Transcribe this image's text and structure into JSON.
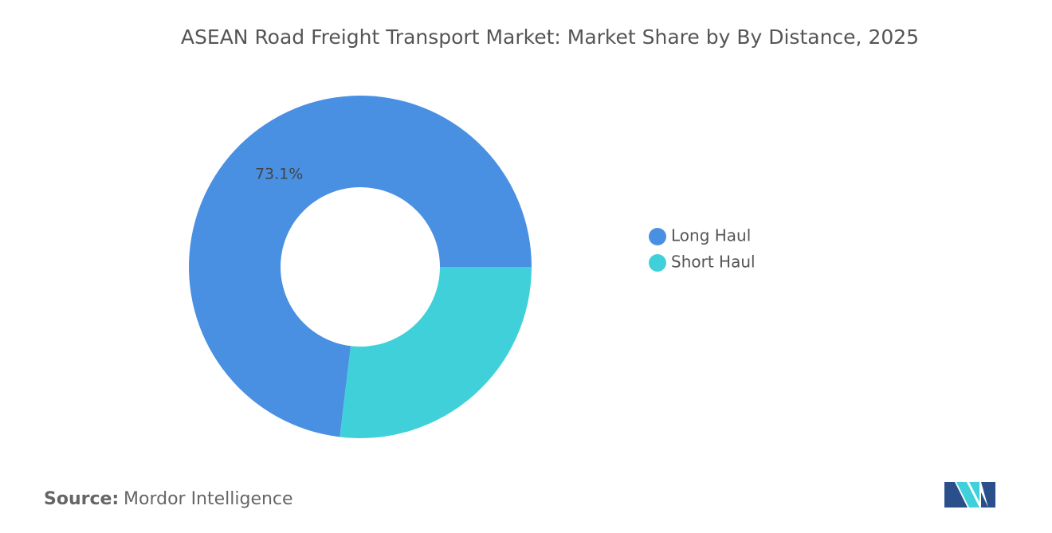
{
  "chart_data": {
    "type": "donut",
    "title": "ASEAN Road Freight Transport Market: Market Share by By Distance, 2025",
    "categories": [
      "Long Haul",
      "Short Haul"
    ],
    "values": [
      73.1,
      26.9
    ],
    "value_labels": [
      "73.1%",
      null
    ],
    "colors": [
      "#4a90e2",
      "#3fd0d9"
    ],
    "legend": "right"
  },
  "footer": {
    "source_label": "Source:",
    "source": "Mordor Intelligence"
  }
}
